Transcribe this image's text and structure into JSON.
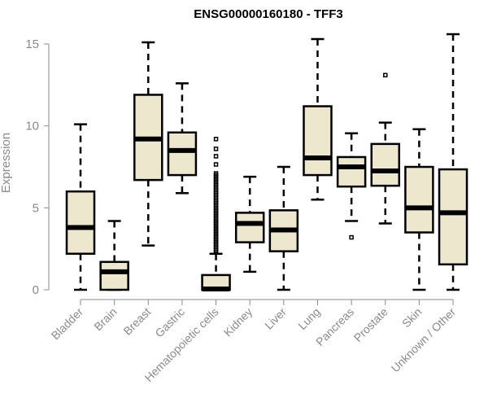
{
  "chart_data": {
    "type": "box",
    "title": "ENSG00000160180 - TFF3",
    "xlabel": "",
    "ylabel": "Expression",
    "ylim": [
      0,
      15.8
    ],
    "yticks": [
      0,
      5,
      10,
      15
    ],
    "grid": false,
    "legend": "none",
    "box_color": "#ede7cd",
    "axis_color": "#8a8a8a",
    "categories": [
      "Bladder",
      "Brain",
      "Breast",
      "Gastric",
      "Hematopoietic cells",
      "Kidney",
      "Liver",
      "Lung",
      "Pancreas",
      "Prostate",
      "Skin",
      "Unknown / Other"
    ],
    "series": [
      {
        "name": "Bladder",
        "whisker_low": 0.0,
        "q1": 2.2,
        "median": 3.8,
        "q3": 6.0,
        "whisker_high": 10.1,
        "outliers": []
      },
      {
        "name": "Brain",
        "whisker_low": 0.0,
        "q1": 0.0,
        "median": 1.1,
        "q3": 1.7,
        "whisker_high": 4.2,
        "outliers": []
      },
      {
        "name": "Breast",
        "whisker_low": 2.7,
        "q1": 6.7,
        "median": 9.2,
        "q3": 11.9,
        "whisker_high": 15.1,
        "outliers": []
      },
      {
        "name": "Gastric",
        "whisker_low": 5.9,
        "q1": 7.0,
        "median": 8.5,
        "q3": 9.6,
        "whisker_high": 12.6,
        "outliers": []
      },
      {
        "name": "Hematopoietic cells",
        "whisker_low": 0.0,
        "q1": 0.0,
        "median": 0.05,
        "q3": 0.9,
        "whisker_high": 2.2,
        "outliers": [
          9.2,
          8.6,
          8.15,
          7.65,
          7.1,
          7.0,
          6.9,
          6.8,
          6.7,
          6.6,
          6.5,
          6.4,
          6.3,
          6.2,
          6.1,
          6.0,
          5.9,
          5.8,
          5.7,
          5.6,
          5.5,
          5.4,
          5.3,
          5.2,
          5.1,
          5.0,
          4.9,
          4.8,
          4.7,
          4.6,
          4.5,
          4.4,
          4.3,
          4.2,
          4.1,
          4.0,
          3.9,
          3.8,
          3.7,
          3.6,
          3.5,
          3.4,
          3.3,
          3.2,
          3.1,
          3.0,
          2.9,
          2.8,
          2.7,
          2.6,
          2.5,
          2.4,
          2.3
        ]
      },
      {
        "name": "Kidney",
        "whisker_low": 1.1,
        "q1": 2.9,
        "median": 4.05,
        "q3": 4.7,
        "whisker_high": 6.9,
        "outliers": []
      },
      {
        "name": "Liver",
        "whisker_low": 0.0,
        "q1": 2.35,
        "median": 3.65,
        "q3": 4.85,
        "whisker_high": 7.5,
        "outliers": []
      },
      {
        "name": "Lung",
        "whisker_low": 5.5,
        "q1": 7.0,
        "median": 8.05,
        "q3": 11.2,
        "whisker_high": 15.3,
        "outliers": []
      },
      {
        "name": "Pancreas",
        "whisker_low": 4.2,
        "q1": 6.3,
        "median": 7.5,
        "q3": 8.1,
        "whisker_high": 9.55,
        "outliers": [
          3.2
        ]
      },
      {
        "name": "Prostate",
        "whisker_low": 4.05,
        "q1": 6.35,
        "median": 7.25,
        "q3": 8.9,
        "whisker_high": 10.2,
        "outliers": [
          13.1
        ]
      },
      {
        "name": "Skin",
        "whisker_low": 0.0,
        "q1": 3.5,
        "median": 5.0,
        "q3": 7.5,
        "whisker_high": 9.8,
        "outliers": []
      },
      {
        "name": "Unknown / Other",
        "whisker_low": 0.0,
        "q1": 1.55,
        "median": 4.7,
        "q3": 7.35,
        "whisker_high": 15.6,
        "outliers": []
      }
    ]
  }
}
